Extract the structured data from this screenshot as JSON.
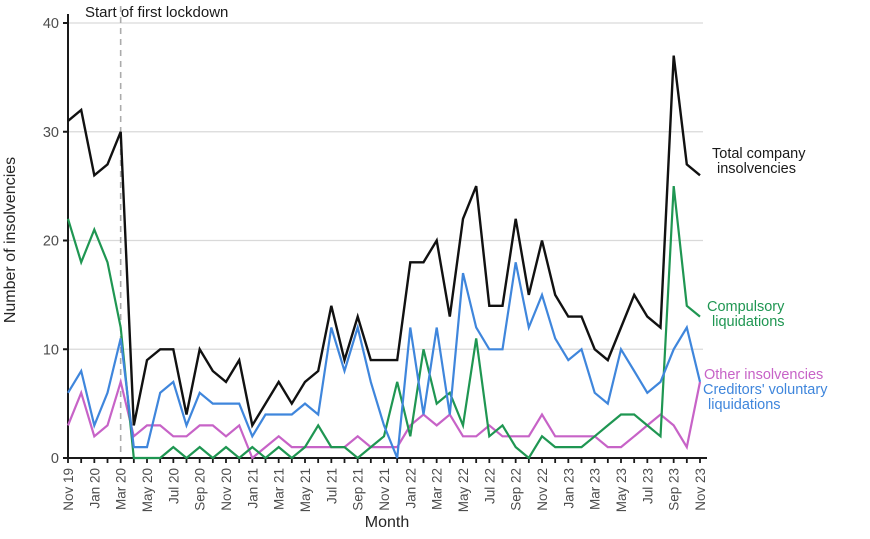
{
  "chart_data": {
    "type": "line",
    "title": "",
    "xlabel": "Month",
    "ylabel": "Number of insolvencies",
    "ylim": [
      0,
      40
    ],
    "yticks": [
      0,
      10,
      20,
      30,
      40
    ],
    "grid": "horizontal-gridlines",
    "x_label_every_n_months": 2,
    "annotation": {
      "text": "Start of first lockdown",
      "month": "Mar 20"
    },
    "categories": [
      "Nov 19",
      "Dec 19",
      "Jan 20",
      "Feb 20",
      "Mar 20",
      "Apr 20",
      "May 20",
      "Jun 20",
      "Jul 20",
      "Aug 20",
      "Sep 20",
      "Oct 20",
      "Nov 20",
      "Dec 20",
      "Jan 21",
      "Feb 21",
      "Mar 21",
      "Apr 21",
      "May 21",
      "Jun 21",
      "Jul 21",
      "Aug 21",
      "Sep 21",
      "Oct 21",
      "Nov 21",
      "Dec 21",
      "Jan 22",
      "Feb 22",
      "Mar 22",
      "Apr 22",
      "May 22",
      "Jun 22",
      "Jul 22",
      "Aug 22",
      "Sep 22",
      "Oct 22",
      "Nov 22",
      "Dec 22",
      "Jan 23",
      "Feb 23",
      "Mar 23",
      "Apr 23",
      "May 23",
      "Jun 23",
      "Jul 23",
      "Aug 23",
      "Sep 23",
      "Oct 23",
      "Nov 23"
    ],
    "series": [
      {
        "name": "Total company insolvencies",
        "label_lines": [
          "Total company",
          "insolvencies"
        ],
        "color": "#111111",
        "values": [
          31,
          32,
          26,
          27,
          30,
          3,
          9,
          10,
          10,
          4,
          10,
          8,
          7,
          9,
          3,
          5,
          7,
          5,
          7,
          8,
          14,
          9,
          13,
          9,
          9,
          9,
          18,
          18,
          20,
          13,
          22,
          25,
          14,
          14,
          22,
          15,
          20,
          15,
          13,
          13,
          10,
          9,
          12,
          15,
          13,
          12,
          37,
          27,
          26
        ]
      },
      {
        "name": "Compulsory liquidations",
        "label_lines": [
          "Compulsory",
          "liquidations"
        ],
        "color": "#1f9652",
        "values": [
          22,
          18,
          21,
          18,
          12,
          0,
          0,
          0,
          1,
          0,
          1,
          0,
          1,
          0,
          1,
          0,
          1,
          0,
          1,
          3,
          1,
          1,
          0,
          1,
          2,
          7,
          2,
          10,
          5,
          6,
          3,
          11,
          2,
          3,
          1,
          0,
          2,
          1,
          1,
          1,
          2,
          3,
          4,
          4,
          3,
          2,
          25,
          14,
          13
        ]
      },
      {
        "name": "Creditors' voluntary liquidations",
        "label_lines": [
          "Creditors' voluntary",
          "liquidations"
        ],
        "color": "#3f86dc",
        "values": [
          6,
          8,
          3,
          6,
          11,
          1,
          1,
          6,
          7,
          3,
          6,
          5,
          5,
          5,
          2,
          4,
          4,
          4,
          5,
          4,
          12,
          8,
          12,
          7,
          3,
          0,
          12,
          4,
          12,
          4,
          17,
          12,
          10,
          10,
          18,
          12,
          15,
          11,
          9,
          10,
          6,
          5,
          10,
          8,
          6,
          7,
          10,
          12,
          7
        ]
      },
      {
        "name": "Other insolvencies",
        "label_lines": [
          "Other insolvencies"
        ],
        "color": "#c763c7",
        "values": [
          3,
          6,
          2,
          3,
          7,
          2,
          3,
          3,
          2,
          2,
          3,
          3,
          2,
          3,
          0,
          1,
          2,
          1,
          1,
          1,
          1,
          1,
          2,
          1,
          1,
          1,
          3,
          4,
          3,
          4,
          2,
          2,
          3,
          2,
          2,
          2,
          4,
          2,
          2,
          2,
          2,
          1,
          1,
          2,
          3,
          4,
          3,
          1,
          7
        ]
      }
    ],
    "legend_position": "right-of-plot-direct-labels",
    "colors": {
      "axis": "#1a1a1a",
      "gridline": "#d9d9d9",
      "tick_label": "#4d4d4d",
      "axis_title": "#262626",
      "lockdown_line": "#ababab",
      "annotation_text": "#1a1a1a"
    }
  }
}
